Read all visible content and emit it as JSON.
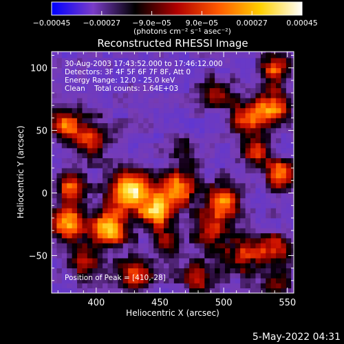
{
  "chart_data": {
    "type": "heatmap",
    "title": "Reconstructed RHESSI Image",
    "xlabel": "Heliocentric X (arcsec)",
    "ylabel": "Heliocentric Y (arcsec)",
    "xlim": [
      365,
      555
    ],
    "ylim": [
      -80,
      113
    ],
    "x_ticks": [
      400,
      450,
      500,
      550
    ],
    "y_ticks": [
      -50,
      0,
      50,
      100
    ],
    "colorbar": {
      "label": "(photons cm⁻² s⁻¹ asec⁻²)",
      "range": [
        -0.00045,
        0.00045
      ],
      "tick_values": [
        -0.00045,
        -0.00027,
        -9e-05,
        9e-05,
        0.00027,
        0.00045
      ],
      "tick_labels": [
        "−0.00045",
        "−0.00027",
        "−9.0e−05",
        "9.0e−05",
        "0.00027",
        "0.00045"
      ],
      "colors": [
        "#0000ff",
        "#7a3cc8",
        "#000000",
        "#b00000",
        "#ff5a00",
        "#ffd000",
        "#ffffff"
      ]
    },
    "annotations": [
      "30-Aug-2003 17:43:52.000 to 17:46:12.000",
      "Detectors: 3F 4F 5F 6F 7F 8F, Att 0",
      "Energy Range: 12.0 - 25.0 keV",
      "Clean    Total counts: 1.64E+03"
    ],
    "peak_label": "Position of Peak = [410,-28]",
    "peak_position": [
      410,
      -28
    ],
    "sources": [
      {
        "x": 410,
        "y": -28,
        "amp": 1.0,
        "sigma": 10
      },
      {
        "x": 378,
        "y": -25,
        "amp": 0.9,
        "sigma": 9
      },
      {
        "x": 428,
        "y": 3,
        "amp": 0.95,
        "sigma": 12
      },
      {
        "x": 448,
        "y": -15,
        "amp": 0.75,
        "sigma": 10
      },
      {
        "x": 465,
        "y": 5,
        "amp": 0.8,
        "sigma": 10
      },
      {
        "x": 500,
        "y": -5,
        "amp": 0.8,
        "sigma": 9
      },
      {
        "x": 490,
        "y": -28,
        "amp": 0.6,
        "sigma": 10
      },
      {
        "x": 380,
        "y": 5,
        "amp": 0.65,
        "sigma": 9
      },
      {
        "x": 395,
        "y": 45,
        "amp": 0.6,
        "sigma": 10
      },
      {
        "x": 375,
        "y": 55,
        "amp": 0.65,
        "sigma": 9
      },
      {
        "x": 520,
        "y": 60,
        "amp": 0.7,
        "sigma": 10
      },
      {
        "x": 540,
        "y": 70,
        "amp": 0.75,
        "sigma": 9
      },
      {
        "x": 545,
        "y": 15,
        "amp": 0.8,
        "sigma": 8
      },
      {
        "x": 525,
        "y": 32,
        "amp": 0.55,
        "sigma": 8
      },
      {
        "x": 540,
        "y": 100,
        "amp": 0.7,
        "sigma": 8
      },
      {
        "x": 495,
        "y": 80,
        "amp": 0.45,
        "sigma": 9
      },
      {
        "x": 515,
        "y": -50,
        "amp": 0.6,
        "sigma": 10
      },
      {
        "x": 540,
        "y": -45,
        "amp": 0.65,
        "sigma": 9
      },
      {
        "x": 390,
        "y": -55,
        "amp": 0.45,
        "sigma": 10
      },
      {
        "x": 430,
        "y": -65,
        "amp": 0.55,
        "sigma": 10
      },
      {
        "x": 480,
        "y": -68,
        "amp": 0.5,
        "sigma": 10
      },
      {
        "x": 540,
        "y": -72,
        "amp": 0.45,
        "sigma": 8
      },
      {
        "x": 470,
        "y": 35,
        "amp": 0.35,
        "sigma": 8
      },
      {
        "x": 455,
        "y": -40,
        "amp": 0.4,
        "sigma": 8
      }
    ]
  },
  "footer": {
    "timestamp": "5-May-2022 04:31"
  }
}
